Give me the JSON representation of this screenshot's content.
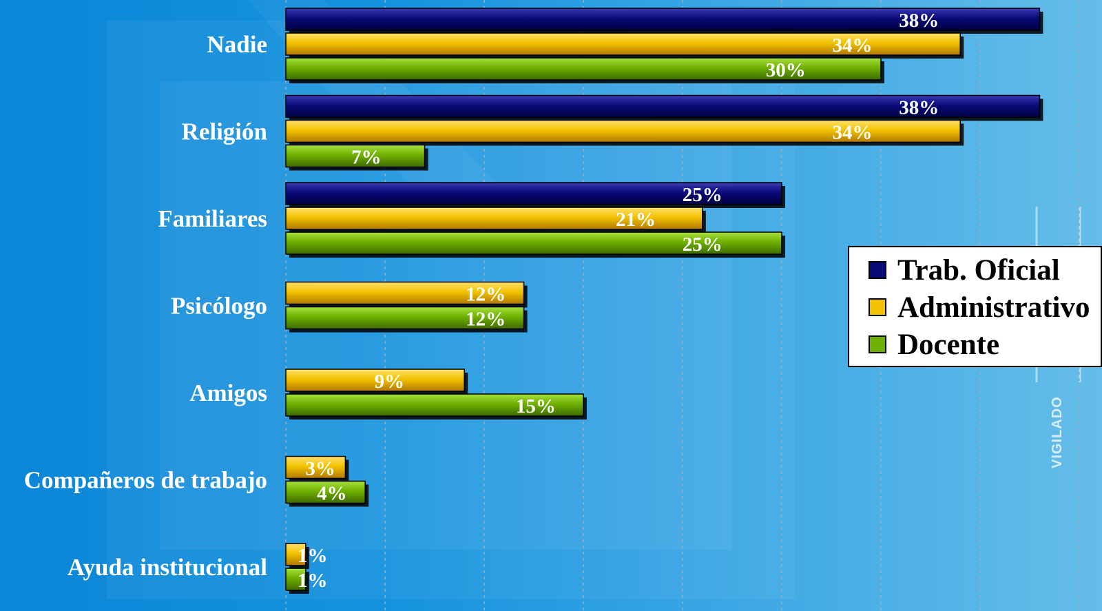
{
  "chart_data": {
    "type": "bar",
    "orientation": "horizontal",
    "title": "",
    "xlabel": "",
    "ylabel": "",
    "xlim": [
      0,
      40
    ],
    "grid": true,
    "legend_position": "right",
    "categories": [
      "Nadie",
      "Religión",
      "Familiares",
      "Psicólogo",
      "Amigos",
      "Compañeros de trabajo",
      "Ayuda institucional"
    ],
    "series": [
      {
        "name": "Trab. Oficial",
        "color": "#0a0a78",
        "values": [
          38,
          38,
          25,
          null,
          null,
          null,
          null
        ],
        "labels": [
          "38%",
          "38%",
          "25%",
          null,
          null,
          null,
          null
        ]
      },
      {
        "name": "Administrativo",
        "color": "#f2c200",
        "values": [
          34,
          34,
          21,
          12,
          9,
          3,
          1
        ],
        "labels": [
          "34%",
          "34%",
          "21%",
          "12%",
          "9%",
          "3%",
          "1%"
        ]
      },
      {
        "name": "Docente",
        "color": "#6fb000",
        "values": [
          30,
          7,
          25,
          12,
          15,
          4,
          1
        ],
        "labels": [
          "30%",
          "7%",
          "25%",
          "12%",
          "15%",
          "4%",
          "1%"
        ]
      }
    ]
  },
  "watermark": {
    "text": "VIGILADO"
  }
}
